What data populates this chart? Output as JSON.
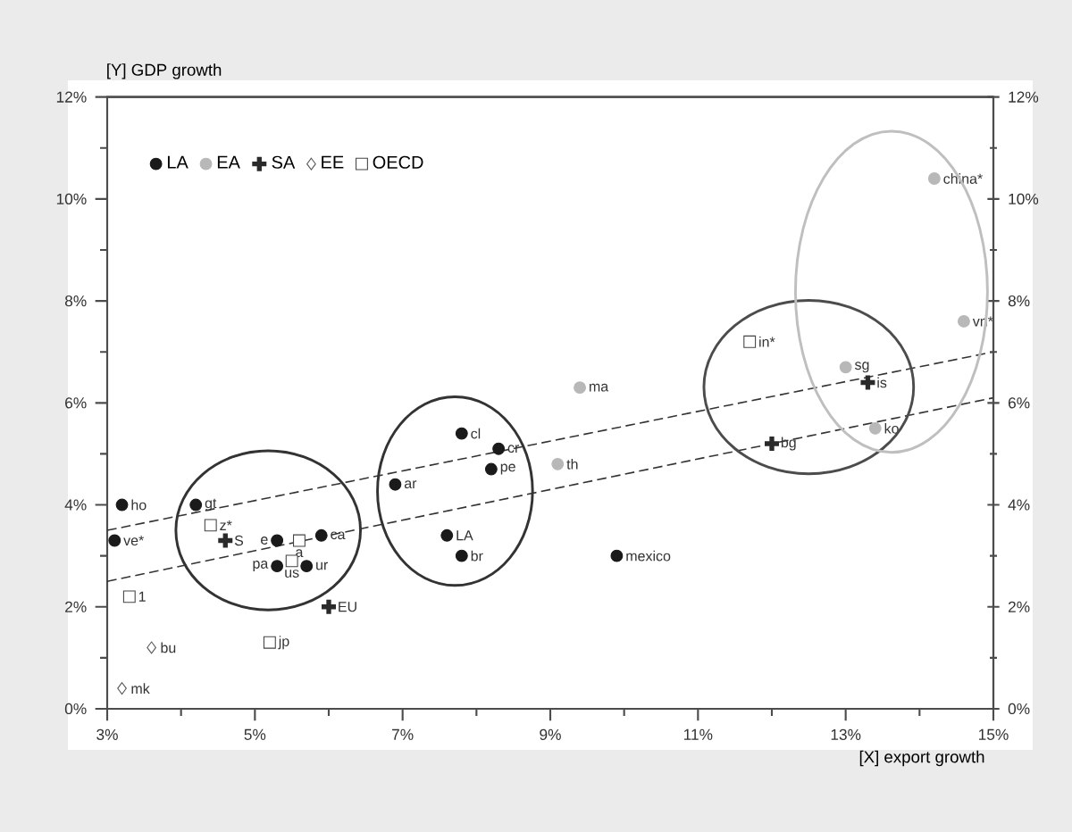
{
  "chart_data": {
    "type": "scatter",
    "xlabel": "[X] export growth",
    "ylabel": "[Y] GDP growth",
    "xlim": [
      3,
      15
    ],
    "ylim": [
      0,
      12
    ],
    "y2lim": [
      0,
      12
    ],
    "xticks": [
      {
        "value": 3,
        "label": "3%"
      },
      {
        "value": 4,
        "label": null
      },
      {
        "value": 5,
        "label": "5%"
      },
      {
        "value": 6,
        "label": null
      },
      {
        "value": 7,
        "label": "7%"
      },
      {
        "value": 8,
        "label": null
      },
      {
        "value": 9,
        "label": "9%"
      },
      {
        "value": 10,
        "label": null
      },
      {
        "value": 11,
        "label": "11%"
      },
      {
        "value": 12,
        "label": null
      },
      {
        "value": 13,
        "label": "13%"
      },
      {
        "value": 14,
        "label": null
      },
      {
        "value": 15,
        "label": "15%"
      }
    ],
    "yticks": [
      {
        "value": 0,
        "label": "0%"
      },
      {
        "value": 1,
        "label": null
      },
      {
        "value": 2,
        "label": "2%"
      },
      {
        "value": 3,
        "label": null
      },
      {
        "value": 4,
        "label": "4%"
      },
      {
        "value": 5,
        "label": null
      },
      {
        "value": 6,
        "label": "6%"
      },
      {
        "value": 7,
        "label": null
      },
      {
        "value": 8,
        "label": "8%"
      },
      {
        "value": 9,
        "label": null
      },
      {
        "value": 10,
        "label": "10%"
      },
      {
        "value": 11,
        "label": null
      },
      {
        "value": 12,
        "label": "12%"
      }
    ],
    "y2ticks": [
      {
        "value": 0,
        "label": "0%"
      },
      {
        "value": 1,
        "label": null
      },
      {
        "value": 2,
        "label": "2%"
      },
      {
        "value": 3,
        "label": null
      },
      {
        "value": 4,
        "label": "4%"
      },
      {
        "value": 5,
        "label": null
      },
      {
        "value": 6,
        "label": "6%"
      },
      {
        "value": 7,
        "label": null
      },
      {
        "value": 8,
        "label": "8%"
      },
      {
        "value": 9,
        "label": null
      },
      {
        "value": 10,
        "label": "10%"
      },
      {
        "value": 11,
        "label": null
      },
      {
        "value": 12,
        "label": "12%"
      }
    ],
    "legend": "top left",
    "grid": false,
    "series": [
      {
        "name": "LA",
        "color": "#1a1a1a",
        "marker": "circle",
        "x": [
          3.2,
          3.1,
          4.2,
          5.3,
          5.9,
          5.3,
          5.7,
          7.8,
          8.3,
          8.2,
          6.9,
          7.6,
          7.8,
          9.9
        ],
        "values": [
          4.0,
          3.3,
          4.0,
          3.3,
          3.4,
          2.8,
          2.8,
          5.4,
          5.1,
          4.7,
          4.4,
          3.4,
          3.0,
          3.0
        ]
      },
      {
        "name": "EA",
        "color": "#b8b8b8",
        "marker": "circle",
        "x": [
          14.2,
          14.6,
          13.0,
          13.4,
          9.4,
          9.1
        ],
        "values": [
          10.4,
          7.6,
          6.7,
          5.5,
          6.3,
          4.8
        ]
      },
      {
        "name": "SA",
        "color": "#2a2a2a",
        "marker": "cross",
        "x": [
          4.6,
          6.0,
          13.3,
          12.0
        ],
        "values": [
          3.3,
          2.0,
          6.4,
          5.2
        ]
      },
      {
        "name": "EE",
        "color": "#555555",
        "marker": "diamond",
        "x": [
          3.6,
          3.2
        ],
        "values": [
          1.2,
          0.4
        ]
      },
      {
        "name": "OECD",
        "color": "#444444",
        "marker": "square",
        "x": [
          4.4,
          5.6,
          5.5,
          5.2,
          3.3,
          11.7
        ],
        "values": [
          3.6,
          3.3,
          2.9,
          1.3,
          2.2,
          7.2
        ]
      },
      {
        "type": "line",
        "color": "#333333",
        "line_style": "dashed",
        "marker": "none",
        "x": [
          3,
          15
        ],
        "values": [
          3.5,
          7.0
        ]
      },
      {
        "type": "line",
        "color": "#333333",
        "line_style": "dashed",
        "marker": "none",
        "x": [
          3,
          15
        ],
        "values": [
          2.5,
          6.1
        ]
      }
    ],
    "annotations": [
      {
        "text": "ho",
        "x": 3.2,
        "y": 4.0
      },
      {
        "text": "ve*",
        "x": 3.1,
        "y": 3.3
      },
      {
        "text": "gt",
        "x": 4.2,
        "y": 4.0
      },
      {
        "text": "e",
        "x": 5.3,
        "y": 3.3
      },
      {
        "text": "ca",
        "x": 5.9,
        "y": 3.4
      },
      {
        "text": "pa",
        "x": 5.3,
        "y": 2.8
      },
      {
        "text": "ur",
        "x": 5.7,
        "y": 2.8
      },
      {
        "text": "cl",
        "x": 7.8,
        "y": 5.4
      },
      {
        "text": "cr",
        "x": 8.3,
        "y": 5.1
      },
      {
        "text": "pe",
        "x": 8.2,
        "y": 4.7
      },
      {
        "text": "ar",
        "x": 6.9,
        "y": 4.4
      },
      {
        "text": "LA",
        "x": 7.6,
        "y": 3.4
      },
      {
        "text": "br",
        "x": 7.8,
        "y": 3.0
      },
      {
        "text": "mexico",
        "x": 9.9,
        "y": 3.0
      },
      {
        "text": "china*",
        "x": 14.2,
        "y": 10.4
      },
      {
        "text": "vn*",
        "x": 14.6,
        "y": 7.6
      },
      {
        "text": "sg",
        "x": 13.0,
        "y": 6.7
      },
      {
        "text": "ko",
        "x": 13.4,
        "y": 5.5
      },
      {
        "text": "ma",
        "x": 9.4,
        "y": 6.3
      },
      {
        "text": "th",
        "x": 9.1,
        "y": 4.8
      },
      {
        "text": "S",
        "x": 4.6,
        "y": 3.3
      },
      {
        "text": "EU",
        "x": 6.0,
        "y": 2.0
      },
      {
        "text": "is",
        "x": 13.3,
        "y": 6.4
      },
      {
        "text": "bg",
        "x": 12.0,
        "y": 5.2
      },
      {
        "text": "bu",
        "x": 3.6,
        "y": 1.2
      },
      {
        "text": "mk",
        "x": 3.2,
        "y": 0.4
      },
      {
        "text": "z*",
        "x": 4.4,
        "y": 3.6
      },
      {
        "text": "a",
        "x": 5.6,
        "y": 3.3
      },
      {
        "text": "us",
        "x": 5.5,
        "y": 2.9
      },
      {
        "text": "jp",
        "x": 5.2,
        "y": 1.3
      },
      {
        "text": "1",
        "x": 3.3,
        "y": 2.2
      },
      {
        "text": "in*",
        "x": 11.7,
        "y": 7.2
      }
    ]
  }
}
